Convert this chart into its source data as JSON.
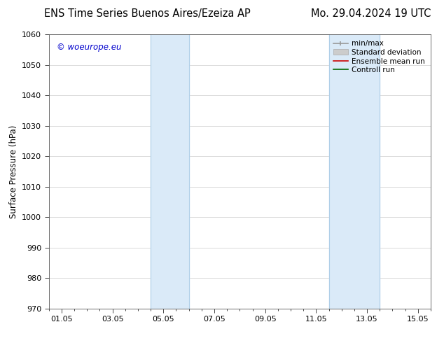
{
  "title_left": "ENS Time Series Buenos Aires/Ezeiza AP",
  "title_right": "Mo. 29.04.2024 19 UTC",
  "ylabel": "Surface Pressure (hPa)",
  "ylim": [
    970,
    1060
  ],
  "yticks": [
    970,
    980,
    990,
    1000,
    1010,
    1020,
    1030,
    1040,
    1050,
    1060
  ],
  "xtick_labels": [
    "01.05",
    "03.05",
    "05.05",
    "07.05",
    "09.05",
    "11.05",
    "13.05",
    "15.05"
  ],
  "xtick_positions": [
    0,
    2,
    4,
    6,
    8,
    10,
    12,
    14
  ],
  "xlim": [
    -0.5,
    14.5
  ],
  "shaded_bands": [
    {
      "x_start": 3.5,
      "x_end": 5.0,
      "color": "#daeaf8"
    },
    {
      "x_start": 10.5,
      "x_end": 12.5,
      "color": "#daeaf8"
    }
  ],
  "vertical_lines": [
    {
      "x": 3.5,
      "color": "#b0cfe8",
      "lw": 0.8
    },
    {
      "x": 5.0,
      "color": "#b0cfe8",
      "lw": 0.8
    },
    {
      "x": 10.5,
      "color": "#b0cfe8",
      "lw": 0.8
    },
    {
      "x": 12.5,
      "color": "#b0cfe8",
      "lw": 0.8
    }
  ],
  "watermark": "© woeurope.eu",
  "watermark_color": "#0000cc",
  "legend_entries": [
    {
      "label": "min/max",
      "color": "#999999",
      "lw": 1.2,
      "style": "minmax"
    },
    {
      "label": "Standard deviation",
      "color": "#cccccc",
      "lw": 5,
      "style": "band"
    },
    {
      "label": "Ensemble mean run",
      "color": "#cc0000",
      "lw": 1.2,
      "style": "line"
    },
    {
      "label": "Controll run",
      "color": "#006600",
      "lw": 1.2,
      "style": "line"
    }
  ],
  "bg_color": "#ffffff",
  "plot_bg_color": "#ffffff",
  "grid_color": "#cccccc",
  "title_fontsize": 10.5,
  "axis_fontsize": 8.5,
  "tick_fontsize": 8,
  "watermark_fontsize": 8.5,
  "legend_fontsize": 7.5
}
